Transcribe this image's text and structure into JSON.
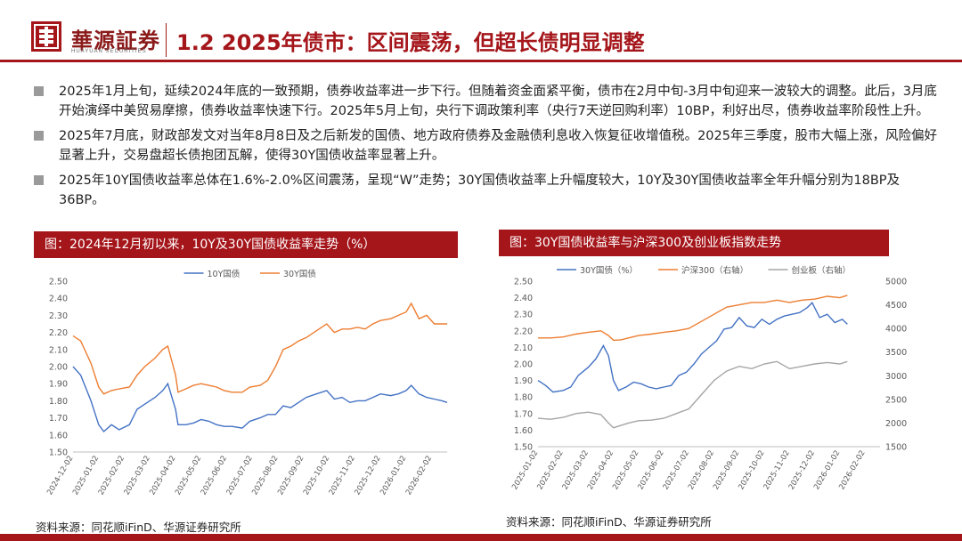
{
  "header": {
    "brand_cn": "華源証券",
    "brand_en": "HUAYUAN SECURITIES",
    "title": "1.2 2025年债市：区间震荡，但超长债明显调整"
  },
  "bullets": [
    "2025年1月上旬，延续2024年底的一致预期，债券收益率进一步下行。但随着资金面紧平衡，债市在2月中旬-3月中旬迎来一波较大的调整。此后，3月底开始演绎中美贸易摩擦，债券收益率快速下行。2025年5月上旬，央行下调政策利率（央行7天逆回购利率）10BP，利好出尽，债券收益率阶段性上升。",
    "2025年7月底，财政部发文对当年8月8日及之后新发的国债、地方政府债券及金融债利息收入恢复征收增值税。2025年三季度，股市大幅上涨，风险偏好显著上升，交易盘超长债抱团瓦解，使得30Y国债收益率显著上升。",
    "2025年10Y国债收益率总体在1.6%-2.0%区间震荡，呈现“W”走势；30Y国债收益率上升幅度较大，10Y及30Y国债收益率全年升幅分别为18BP及36BP。"
  ],
  "chart1": {
    "title": "图：2024年12月初以来，10Y及30Y国债收益率走势（%）",
    "source": "资料来源：同花顺iFinD、华源证券研究所"
  },
  "chart2": {
    "title": "图：30Y国债收益率与沪深300及创业板指数走势",
    "source": "资料来源：同花顺iFinD、华源证券研究所"
  },
  "chart_data": [
    {
      "type": "line",
      "title": "图：2024年12月初以来，10Y及30Y国债收益率走势（%）",
      "ylim": [
        1.5,
        2.5
      ],
      "yticks": [
        "2.50",
        "2.40",
        "2.30",
        "2.20",
        "2.10",
        "2.00",
        "1.90",
        "1.80",
        "1.70",
        "1.60",
        "1.50"
      ],
      "x_ticks": [
        "2024-12-02",
        "2025-01-02",
        "2025-02-02",
        "2025-03-02",
        "2025-04-02",
        "2025-05-02",
        "2025-06-02",
        "2025-07-02",
        "2025-08-02",
        "2025-09-02",
        "2025-10-02",
        "2025-11-02",
        "2025-12-02",
        "2026-01-02",
        "2026-02-02"
      ],
      "legend": "top",
      "series": [
        {
          "name": "10Y国债",
          "color": "#4472C4",
          "values": [
            [
              0,
              2.0
            ],
            [
              0.3,
              1.95
            ],
            [
              0.7,
              1.8
            ],
            [
              1.0,
              1.66
            ],
            [
              1.2,
              1.62
            ],
            [
              1.5,
              1.66
            ],
            [
              1.8,
              1.63
            ],
            [
              2.2,
              1.66
            ],
            [
              2.5,
              1.75
            ],
            [
              2.8,
              1.78
            ],
            [
              3.2,
              1.82
            ],
            [
              3.5,
              1.86
            ],
            [
              3.7,
              1.9
            ],
            [
              4.0,
              1.75
            ],
            [
              4.1,
              1.66
            ],
            [
              4.4,
              1.66
            ],
            [
              4.7,
              1.67
            ],
            [
              5.0,
              1.69
            ],
            [
              5.3,
              1.68
            ],
            [
              5.6,
              1.66
            ],
            [
              5.9,
              1.65
            ],
            [
              6.2,
              1.65
            ],
            [
              6.6,
              1.64
            ],
            [
              6.9,
              1.68
            ],
            [
              7.3,
              1.7
            ],
            [
              7.6,
              1.72
            ],
            [
              7.9,
              1.72
            ],
            [
              8.2,
              1.77
            ],
            [
              8.5,
              1.76
            ],
            [
              8.8,
              1.79
            ],
            [
              9.1,
              1.82
            ],
            [
              9.5,
              1.84
            ],
            [
              9.9,
              1.86
            ],
            [
              10.2,
              1.81
            ],
            [
              10.5,
              1.82
            ],
            [
              10.8,
              1.79
            ],
            [
              11.1,
              1.8
            ],
            [
              11.4,
              1.8
            ],
            [
              11.7,
              1.82
            ],
            [
              12.0,
              1.84
            ],
            [
              12.4,
              1.83
            ],
            [
              12.7,
              1.84
            ],
            [
              13.0,
              1.86
            ],
            [
              13.2,
              1.89
            ],
            [
              13.5,
              1.84
            ],
            [
              13.8,
              1.82
            ],
            [
              14.1,
              1.81
            ],
            [
              14.4,
              1.8
            ],
            [
              14.6,
              1.79
            ]
          ]
        },
        {
          "name": "30Y国债",
          "color": "#ED7D31",
          "values": [
            [
              0,
              2.18
            ],
            [
              0.3,
              2.15
            ],
            [
              0.7,
              2.02
            ],
            [
              1.0,
              1.88
            ],
            [
              1.2,
              1.84
            ],
            [
              1.5,
              1.86
            ],
            [
              1.8,
              1.87
            ],
            [
              2.2,
              1.88
            ],
            [
              2.5,
              1.95
            ],
            [
              2.8,
              2.0
            ],
            [
              3.2,
              2.05
            ],
            [
              3.5,
              2.1
            ],
            [
              3.7,
              2.12
            ],
            [
              4.0,
              1.95
            ],
            [
              4.1,
              1.85
            ],
            [
              4.4,
              1.87
            ],
            [
              4.7,
              1.89
            ],
            [
              5.0,
              1.9
            ],
            [
              5.3,
              1.89
            ],
            [
              5.6,
              1.88
            ],
            [
              5.9,
              1.86
            ],
            [
              6.2,
              1.85
            ],
            [
              6.6,
              1.85
            ],
            [
              6.9,
              1.88
            ],
            [
              7.3,
              1.89
            ],
            [
              7.6,
              1.92
            ],
            [
              7.9,
              2.0
            ],
            [
              8.2,
              2.1
            ],
            [
              8.5,
              2.12
            ],
            [
              8.8,
              2.15
            ],
            [
              9.1,
              2.17
            ],
            [
              9.5,
              2.21
            ],
            [
              9.9,
              2.25
            ],
            [
              10.2,
              2.2
            ],
            [
              10.5,
              2.22
            ],
            [
              10.8,
              2.22
            ],
            [
              11.1,
              2.23
            ],
            [
              11.4,
              2.22
            ],
            [
              11.7,
              2.25
            ],
            [
              12.0,
              2.27
            ],
            [
              12.4,
              2.28
            ],
            [
              12.7,
              2.3
            ],
            [
              13.0,
              2.32
            ],
            [
              13.2,
              2.37
            ],
            [
              13.5,
              2.28
            ],
            [
              13.8,
              2.3
            ],
            [
              14.1,
              2.25
            ],
            [
              14.4,
              2.25
            ],
            [
              14.6,
              2.25
            ]
          ]
        }
      ]
    },
    {
      "type": "line",
      "title": "图：30Y国债收益率与沪深300及创业板指数走势",
      "ylim": [
        1.5,
        2.5
      ],
      "y2lim": [
        1500,
        5000
      ],
      "yticks": [
        "2.50",
        "2.40",
        "2.30",
        "2.20",
        "2.10",
        "2.00",
        "1.90",
        "1.80",
        "1.70",
        "1.60",
        "1.50"
      ],
      "y2ticks": [
        "5000",
        "4500",
        "4000",
        "3500",
        "3000",
        "2500",
        "2000",
        "1500"
      ],
      "x_ticks": [
        "2025-01-02",
        "2025-02-02",
        "2025-03-02",
        "2025-04-02",
        "2025-05-02",
        "2025-06-02",
        "2025-07-02",
        "2025-08-02",
        "2025-09-02",
        "2025-10-02",
        "2025-11-02",
        "2025-12-02",
        "2026-01-02",
        "2026-02-02"
      ],
      "legend": "top",
      "series": [
        {
          "name": "30Y国债（%）",
          "axis": "left",
          "color": "#4472C4",
          "values": [
            [
              0,
              1.9
            ],
            [
              0.3,
              1.87
            ],
            [
              0.6,
              1.83
            ],
            [
              1.0,
              1.84
            ],
            [
              1.3,
              1.86
            ],
            [
              1.6,
              1.93
            ],
            [
              2.0,
              1.98
            ],
            [
              2.3,
              2.03
            ],
            [
              2.6,
              2.11
            ],
            [
              2.8,
              2.05
            ],
            [
              3.0,
              1.9
            ],
            [
              3.2,
              1.84
            ],
            [
              3.5,
              1.86
            ],
            [
              3.8,
              1.89
            ],
            [
              4.1,
              1.88
            ],
            [
              4.4,
              1.86
            ],
            [
              4.7,
              1.85
            ],
            [
              5.0,
              1.86
            ],
            [
              5.3,
              1.87
            ],
            [
              5.6,
              1.93
            ],
            [
              5.9,
              1.95
            ],
            [
              6.2,
              2.0
            ],
            [
              6.5,
              2.06
            ],
            [
              6.8,
              2.1
            ],
            [
              7.1,
              2.14
            ],
            [
              7.4,
              2.21
            ],
            [
              7.7,
              2.22
            ],
            [
              8.0,
              2.28
            ],
            [
              8.3,
              2.23
            ],
            [
              8.6,
              2.22
            ],
            [
              8.9,
              2.27
            ],
            [
              9.2,
              2.24
            ],
            [
              9.5,
              2.27
            ],
            [
              9.8,
              2.29
            ],
            [
              10.1,
              2.3
            ],
            [
              10.4,
              2.31
            ],
            [
              10.7,
              2.34
            ],
            [
              10.9,
              2.37
            ],
            [
              11.2,
              2.28
            ],
            [
              11.5,
              2.3
            ],
            [
              11.8,
              2.25
            ],
            [
              12.1,
              2.27
            ],
            [
              12.3,
              2.24
            ]
          ]
        },
        {
          "name": "沪深300（右轴）",
          "axis": "right",
          "color": "#ED7D31",
          "values": [
            [
              0,
              3800
            ],
            [
              0.5,
              3800
            ],
            [
              1.0,
              3820
            ],
            [
              1.5,
              3880
            ],
            [
              2.0,
              3920
            ],
            [
              2.5,
              3950
            ],
            [
              2.8,
              3850
            ],
            [
              3.0,
              3750
            ],
            [
              3.3,
              3760
            ],
            [
              3.6,
              3800
            ],
            [
              4.0,
              3850
            ],
            [
              4.5,
              3880
            ],
            [
              5.0,
              3920
            ],
            [
              5.5,
              3950
            ],
            [
              6.0,
              4000
            ],
            [
              6.5,
              4150
            ],
            [
              7.0,
              4300
            ],
            [
              7.5,
              4450
            ],
            [
              8.0,
              4500
            ],
            [
              8.5,
              4550
            ],
            [
              9.0,
              4550
            ],
            [
              9.5,
              4600
            ],
            [
              10.0,
              4550
            ],
            [
              10.5,
              4600
            ],
            [
              11.0,
              4620
            ],
            [
              11.5,
              4680
            ],
            [
              12.0,
              4650
            ],
            [
              12.3,
              4700
            ]
          ]
        },
        {
          "name": "创业板（右轴）",
          "axis": "right",
          "color": "#A5A5A5",
          "values": [
            [
              0,
              2100
            ],
            [
              0.5,
              2080
            ],
            [
              1.0,
              2120
            ],
            [
              1.5,
              2200
            ],
            [
              2.0,
              2230
            ],
            [
              2.5,
              2180
            ],
            [
              2.8,
              2000
            ],
            [
              3.0,
              1900
            ],
            [
              3.3,
              1950
            ],
            [
              3.6,
              2000
            ],
            [
              4.0,
              2050
            ],
            [
              4.5,
              2060
            ],
            [
              5.0,
              2100
            ],
            [
              5.5,
              2200
            ],
            [
              6.0,
              2300
            ],
            [
              6.5,
              2600
            ],
            [
              7.0,
              2900
            ],
            [
              7.5,
              3100
            ],
            [
              8.0,
              3200
            ],
            [
              8.5,
              3150
            ],
            [
              9.0,
              3250
            ],
            [
              9.5,
              3300
            ],
            [
              10.0,
              3150
            ],
            [
              10.5,
              3200
            ],
            [
              11.0,
              3250
            ],
            [
              11.5,
              3280
            ],
            [
              12.0,
              3250
            ],
            [
              12.3,
              3300
            ]
          ]
        }
      ]
    }
  ]
}
